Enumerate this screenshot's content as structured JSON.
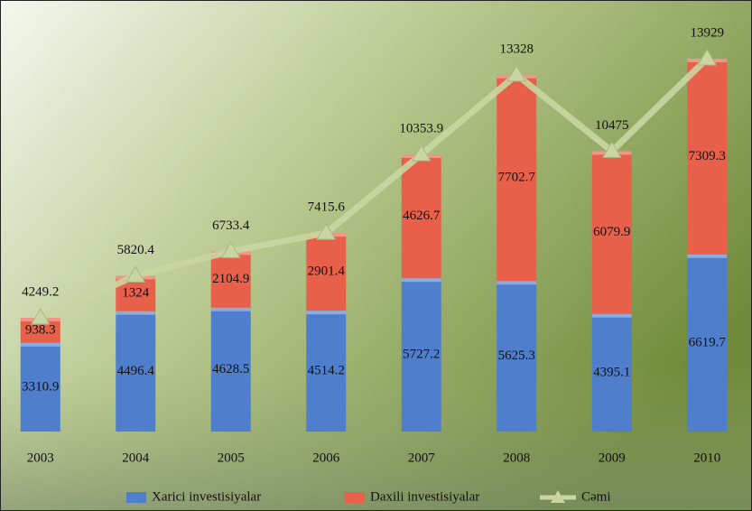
{
  "chart_data": {
    "type": "bar",
    "stacked": true,
    "categories": [
      "2003",
      "2004",
      "2005",
      "2006",
      "2007",
      "2008",
      "2009",
      "2010"
    ],
    "series": [
      {
        "name": "Xarici investisiyalar",
        "color": "#4f7fcc",
        "values": [
          3310.9,
          4496.4,
          4628.5,
          4514.2,
          5727.2,
          5625.3,
          4395.1,
          6619.7
        ]
      },
      {
        "name": "Daxili investisiyalar",
        "color": "#e8604a",
        "values": [
          938.3,
          1324,
          2104.9,
          2901.4,
          4626.7,
          7702.7,
          6079.9,
          7309.3
        ]
      },
      {
        "name": "Cəmi",
        "color": "#c9d6a2",
        "mark": "line",
        "values": [
          4249.2,
          5820.4,
          6733.4,
          7415.6,
          10353.9,
          13328,
          10475,
          13929
        ]
      }
    ],
    "legend": "bottom"
  }
}
